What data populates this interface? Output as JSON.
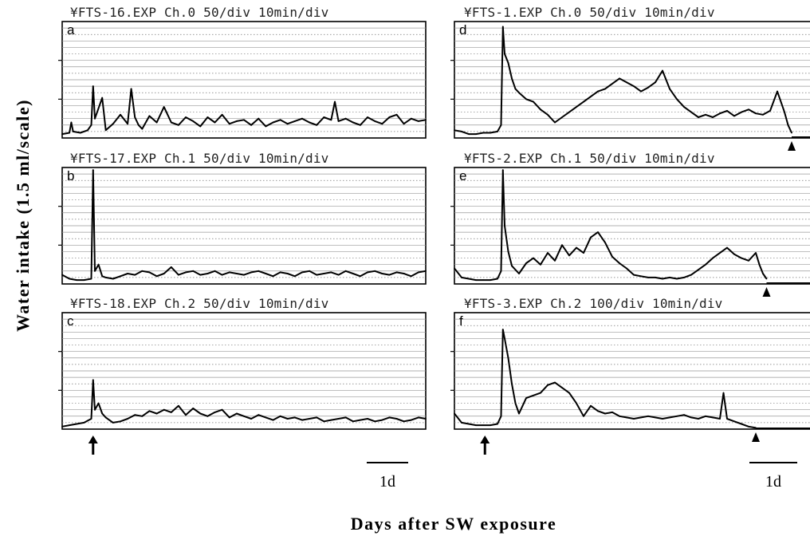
{
  "chart_data": [
    {
      "type": "line",
      "panel_label": "a",
      "header": "¥FTS-16.EXP  Ch.0   50/div 10min/div",
      "x_unit": "fraction of time axis",
      "ylim": [
        0,
        9
      ],
      "exposure_arrow": false,
      "end_arrowhead": false,
      "series": [
        {
          "x": [
            0,
            0.02,
            0.025,
            0.03,
            0.05,
            0.07,
            0.08,
            0.085,
            0.09,
            0.1,
            0.11,
            0.12,
            0.14,
            0.16,
            0.18,
            0.19,
            0.2,
            0.21,
            0.22,
            0.24,
            0.26,
            0.28,
            0.3,
            0.32,
            0.34,
            0.36,
            0.38,
            0.4,
            0.42,
            0.44,
            0.46,
            0.48,
            0.5,
            0.52,
            0.54,
            0.56,
            0.58,
            0.6,
            0.62,
            0.64,
            0.66,
            0.68,
            0.7,
            0.72,
            0.74,
            0.75,
            0.76,
            0.78,
            0.8,
            0.82,
            0.84,
            0.86,
            0.88,
            0.9,
            0.92,
            0.94,
            0.96,
            0.98,
            1.0
          ],
          "values": [
            0.3,
            0.4,
            1.2,
            0.5,
            0.4,
            0.6,
            1.0,
            4.0,
            1.5,
            2.3,
            3.1,
            0.6,
            1.1,
            1.8,
            1.1,
            3.8,
            1.6,
            1.0,
            0.7,
            1.7,
            1.2,
            2.4,
            1.2,
            1.0,
            1.6,
            1.3,
            0.9,
            1.6,
            1.2,
            1.8,
            1.1,
            1.3,
            1.4,
            1.0,
            1.5,
            0.9,
            1.2,
            1.4,
            1.1,
            1.3,
            1.5,
            1.2,
            1.0,
            1.6,
            1.4,
            2.8,
            1.3,
            1.5,
            1.2,
            1.0,
            1.6,
            1.3,
            1.1,
            1.6,
            1.8,
            1.1,
            1.5,
            1.3,
            1.4
          ]
        }
      ]
    },
    {
      "type": "line",
      "panel_label": "b",
      "header": "¥FTS-17.EXP  Ch.1   50/div 10min/div",
      "x_unit": "fraction of time axis",
      "ylim": [
        0,
        9
      ],
      "exposure_arrow": false,
      "end_arrowhead": false,
      "series": [
        {
          "x": [
            0,
            0.02,
            0.04,
            0.06,
            0.08,
            0.085,
            0.09,
            0.1,
            0.11,
            0.12,
            0.14,
            0.16,
            0.18,
            0.2,
            0.22,
            0.24,
            0.26,
            0.28,
            0.3,
            0.32,
            0.34,
            0.36,
            0.38,
            0.4,
            0.42,
            0.44,
            0.46,
            0.48,
            0.5,
            0.52,
            0.54,
            0.56,
            0.58,
            0.6,
            0.62,
            0.64,
            0.66,
            0.68,
            0.7,
            0.72,
            0.74,
            0.76,
            0.78,
            0.8,
            0.82,
            0.84,
            0.86,
            0.88,
            0.9,
            0.92,
            0.94,
            0.96,
            0.98,
            1.0
          ],
          "values": [
            0.7,
            0.4,
            0.3,
            0.3,
            0.4,
            8.8,
            1.0,
            1.5,
            0.6,
            0.5,
            0.4,
            0.6,
            0.8,
            0.7,
            1.0,
            0.9,
            0.6,
            0.8,
            1.3,
            0.7,
            0.9,
            1.0,
            0.7,
            0.8,
            1.0,
            0.7,
            0.9,
            0.8,
            0.7,
            0.9,
            1.0,
            0.8,
            0.6,
            0.9,
            0.8,
            0.6,
            0.9,
            1.0,
            0.7,
            0.8,
            0.9,
            0.7,
            1.0,
            0.8,
            0.6,
            0.9,
            1.0,
            0.8,
            0.7,
            0.9,
            0.8,
            0.6,
            0.9,
            1.0
          ]
        }
      ]
    },
    {
      "type": "line",
      "panel_label": "c",
      "header": "¥FTS-18.EXP  Ch.2   50/div 10min/div",
      "x_unit": "fraction of time axis",
      "ylim": [
        0,
        9
      ],
      "exposure_arrow": true,
      "end_arrowhead": false,
      "series": [
        {
          "x": [
            0,
            0.02,
            0.04,
            0.06,
            0.08,
            0.085,
            0.09,
            0.1,
            0.11,
            0.12,
            0.14,
            0.16,
            0.18,
            0.2,
            0.22,
            0.24,
            0.26,
            0.28,
            0.3,
            0.32,
            0.34,
            0.36,
            0.38,
            0.4,
            0.42,
            0.44,
            0.46,
            0.48,
            0.5,
            0.52,
            0.54,
            0.56,
            0.58,
            0.6,
            0.62,
            0.64,
            0.66,
            0.68,
            0.7,
            0.72,
            0.74,
            0.76,
            0.78,
            0.8,
            0.82,
            0.84,
            0.86,
            0.88,
            0.9,
            0.92,
            0.94,
            0.96,
            0.98,
            1.0
          ],
          "values": [
            0.2,
            0.3,
            0.4,
            0.5,
            0.8,
            3.8,
            1.5,
            2.0,
            1.2,
            0.9,
            0.5,
            0.6,
            0.8,
            1.1,
            1.0,
            1.4,
            1.2,
            1.5,
            1.3,
            1.8,
            1.1,
            1.6,
            1.2,
            1.0,
            1.3,
            1.5,
            0.9,
            1.2,
            1.0,
            0.8,
            1.1,
            0.9,
            0.7,
            1.0,
            0.8,
            0.9,
            0.7,
            0.8,
            0.9,
            0.6,
            0.7,
            0.8,
            0.9,
            0.6,
            0.7,
            0.8,
            0.6,
            0.7,
            0.9,
            0.8,
            0.6,
            0.7,
            0.9,
            0.8
          ]
        }
      ]
    },
    {
      "type": "line",
      "panel_label": "d",
      "header": "¥FTS-1.EXP   Ch.0   50/div 10min/div",
      "x_unit": "fraction of time axis",
      "ylim": [
        0,
        9
      ],
      "exposure_arrow": false,
      "end_arrowhead": true,
      "series": [
        {
          "x": [
            0,
            0.02,
            0.04,
            0.06,
            0.08,
            0.1,
            0.12,
            0.13,
            0.135,
            0.14,
            0.15,
            0.16,
            0.17,
            0.18,
            0.2,
            0.22,
            0.24,
            0.26,
            0.28,
            0.3,
            0.32,
            0.34,
            0.36,
            0.38,
            0.4,
            0.42,
            0.44,
            0.46,
            0.48,
            0.5,
            0.52,
            0.54,
            0.56,
            0.58,
            0.6,
            0.62,
            0.64,
            0.66,
            0.68,
            0.7,
            0.72,
            0.74,
            0.76,
            0.78,
            0.8,
            0.82,
            0.84,
            0.86,
            0.88,
            0.9,
            0.92,
            0.93,
            0.94
          ],
          "values": [
            0.6,
            0.5,
            0.3,
            0.3,
            0.4,
            0.4,
            0.5,
            1.0,
            8.6,
            6.5,
            5.8,
            4.6,
            3.8,
            3.5,
            3.0,
            2.8,
            2.2,
            1.8,
            1.2,
            1.6,
            2.0,
            2.4,
            2.8,
            3.2,
            3.6,
            3.8,
            4.2,
            4.6,
            4.3,
            4.0,
            3.6,
            3.9,
            4.3,
            5.2,
            3.8,
            3.0,
            2.4,
            2.0,
            1.6,
            1.8,
            1.6,
            1.9,
            2.1,
            1.7,
            2.0,
            2.2,
            1.9,
            1.8,
            2.1,
            3.6,
            2.0,
            1.0,
            0.4
          ]
        }
      ]
    },
    {
      "type": "line",
      "panel_label": "e",
      "header": "¥FTS-2.EXP   Ch.1   50/div 10min/div",
      "x_unit": "fraction of time axis",
      "ylim": [
        0,
        9
      ],
      "exposure_arrow": false,
      "end_arrowhead": true,
      "series": [
        {
          "x": [
            0,
            0.02,
            0.04,
            0.06,
            0.08,
            0.1,
            0.12,
            0.13,
            0.135,
            0.14,
            0.15,
            0.16,
            0.18,
            0.2,
            0.22,
            0.24,
            0.26,
            0.28,
            0.3,
            0.32,
            0.34,
            0.36,
            0.38,
            0.4,
            0.42,
            0.44,
            0.46,
            0.48,
            0.5,
            0.52,
            0.54,
            0.56,
            0.58,
            0.6,
            0.62,
            0.64,
            0.66,
            0.68,
            0.7,
            0.72,
            0.74,
            0.76,
            0.78,
            0.8,
            0.82,
            0.84,
            0.85,
            0.86,
            0.87
          ],
          "values": [
            1.2,
            0.5,
            0.4,
            0.3,
            0.3,
            0.3,
            0.4,
            1.0,
            8.8,
            4.5,
            2.5,
            1.4,
            0.8,
            1.6,
            2.0,
            1.5,
            2.4,
            1.8,
            3.0,
            2.2,
            2.8,
            2.4,
            3.6,
            4.0,
            3.2,
            2.1,
            1.6,
            1.2,
            0.7,
            0.6,
            0.5,
            0.5,
            0.4,
            0.5,
            0.4,
            0.5,
            0.7,
            1.1,
            1.5,
            2.0,
            2.4,
            2.8,
            2.3,
            2.0,
            1.8,
            2.4,
            1.5,
            0.8,
            0.4
          ]
        }
      ]
    },
    {
      "type": "line",
      "panel_label": "f",
      "header": "¥FTS-3.EXP   Ch.2   100/div 10min/div",
      "x_unit": "fraction of time axis",
      "ylim": [
        0,
        9
      ],
      "exposure_arrow": true,
      "end_arrowhead": true,
      "series": [
        {
          "x": [
            0,
            0.02,
            0.04,
            0.06,
            0.08,
            0.1,
            0.12,
            0.13,
            0.135,
            0.14,
            0.15,
            0.16,
            0.17,
            0.18,
            0.2,
            0.22,
            0.24,
            0.26,
            0.28,
            0.3,
            0.32,
            0.34,
            0.36,
            0.38,
            0.4,
            0.42,
            0.44,
            0.46,
            0.48,
            0.5,
            0.52,
            0.54,
            0.56,
            0.58,
            0.6,
            0.62,
            0.64,
            0.66,
            0.68,
            0.7,
            0.72,
            0.74,
            0.75,
            0.76,
            0.78,
            0.8,
            0.82,
            0.84
          ],
          "values": [
            1.2,
            0.5,
            0.4,
            0.3,
            0.3,
            0.3,
            0.4,
            1.0,
            7.7,
            7.0,
            5.5,
            3.5,
            2.0,
            1.2,
            2.4,
            2.6,
            2.8,
            3.4,
            3.6,
            3.2,
            2.8,
            2.0,
            1.0,
            1.8,
            1.4,
            1.2,
            1.3,
            1.0,
            0.9,
            0.8,
            0.9,
            1.0,
            0.9,
            0.8,
            0.9,
            1.0,
            1.1,
            0.9,
            0.8,
            1.0,
            0.9,
            0.8,
            2.8,
            0.8,
            0.6,
            0.4,
            0.2,
            0.1
          ]
        }
      ]
    }
  ],
  "labels": {
    "y_axis": "Water intake (1.5 ml/scale)",
    "x_axis": "Days after SW exposure",
    "scale_bar_left": "1d",
    "scale_bar_right": "1d"
  }
}
